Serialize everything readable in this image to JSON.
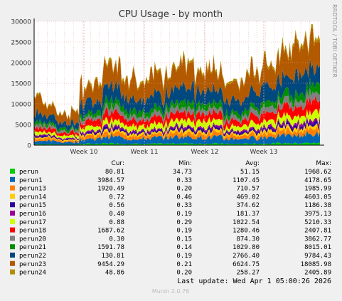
{
  "chart_data": {
    "type": "area",
    "title": "CPU Usage - by month",
    "watermark": "RRDTOOL / TOBI OETIKER",
    "footer": "Munin 2.0.76",
    "last_update": "Last update: Wed Apr  1 05:00:26 2026",
    "ylim": [
      0,
      30000
    ],
    "yticks": [
      0,
      5000,
      10000,
      15000,
      20000,
      25000,
      30000
    ],
    "ytick_labels": [
      "0",
      "5000",
      "10000",
      "15000",
      "20000",
      "25000",
      "30000"
    ],
    "xticks": [
      "Week 10",
      "Week 11",
      "Week 12",
      "Week 13"
    ],
    "grid": true,
    "table_headers": [
      "Cur:",
      "Min:",
      "Avg:",
      "Max:"
    ],
    "colors": {
      "background": "#f0f0f0",
      "plot": "#ffffff",
      "grid": "#e8a0a0",
      "axis": "#000000"
    },
    "series": [
      {
        "name": "perun",
        "color": "#00cc00",
        "cur": "80.81",
        "min": "34.73",
        "avg": "51.15",
        "max": "1968.62"
      },
      {
        "name": "perun1",
        "color": "#0066b3",
        "cur": "3984.57",
        "min": "0.33",
        "avg": "1107.45",
        "max": "4178.65"
      },
      {
        "name": "perun13",
        "color": "#ff8000",
        "cur": "1920.49",
        "min": "0.20",
        "avg": "710.57",
        "max": "1985.99"
      },
      {
        "name": "perun14",
        "color": "#ffcc00",
        "cur": "0.72",
        "min": "0.46",
        "avg": "469.02",
        "max": "4603.05"
      },
      {
        "name": "perun15",
        "color": "#330099",
        "cur": "0.56",
        "min": "0.33",
        "avg": "374.62",
        "max": "1186.38"
      },
      {
        "name": "perun16",
        "color": "#990099",
        "cur": "0.40",
        "min": "0.19",
        "avg": "181.37",
        "max": "3975.13"
      },
      {
        "name": "perun17",
        "color": "#ccff00",
        "cur": "0.88",
        "min": "0.29",
        "avg": "1022.54",
        "max": "5210.33"
      },
      {
        "name": "perun18",
        "color": "#ff0000",
        "cur": "1687.62",
        "min": "0.19",
        "avg": "1280.46",
        "max": "2407.81"
      },
      {
        "name": "perun20",
        "color": "#808080",
        "cur": "0.30",
        "min": "0.15",
        "avg": "874.30",
        "max": "3862.77"
      },
      {
        "name": "perun21",
        "color": "#008f00",
        "cur": "1591.78",
        "min": "0.14",
        "avg": "1029.80",
        "max": "8015.01"
      },
      {
        "name": "perun22",
        "color": "#00487d",
        "cur": "130.81",
        "min": "0.19",
        "avg": "2766.40",
        "max": "9784.43"
      },
      {
        "name": "perun23",
        "color": "#b35a00",
        "cur": "9454.29",
        "min": "0.21",
        "avg": "6624.75",
        "max": "18085.98"
      },
      {
        "name": "perun24",
        "color": "#b38f00",
        "cur": "48.86",
        "min": "0.20",
        "avg": "258.27",
        "max": "2405.89"
      }
    ]
  }
}
